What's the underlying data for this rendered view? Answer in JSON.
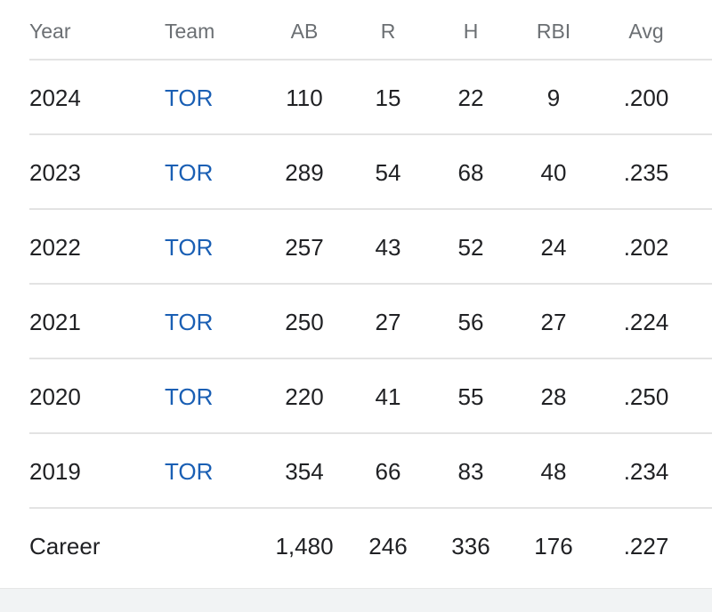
{
  "table": {
    "headers": {
      "year": "Year",
      "team": "Team",
      "ab": "AB",
      "r": "R",
      "h": "H",
      "rbi": "RBI",
      "avg": "Avg"
    },
    "rows": [
      {
        "year": "2024",
        "team": "TOR",
        "ab": "110",
        "r": "15",
        "h": "22",
        "rbi": "9",
        "avg": ".200"
      },
      {
        "year": "2023",
        "team": "TOR",
        "ab": "289",
        "r": "54",
        "h": "68",
        "rbi": "40",
        "avg": ".235"
      },
      {
        "year": "2022",
        "team": "TOR",
        "ab": "257",
        "r": "43",
        "h": "52",
        "rbi": "24",
        "avg": ".202"
      },
      {
        "year": "2021",
        "team": "TOR",
        "ab": "250",
        "r": "27",
        "h": "56",
        "rbi": "27",
        "avg": ".224"
      },
      {
        "year": "2020",
        "team": "TOR",
        "ab": "220",
        "r": "41",
        "h": "55",
        "rbi": "28",
        "avg": ".250"
      },
      {
        "year": "2019",
        "team": "TOR",
        "ab": "354",
        "r": "66",
        "h": "83",
        "rbi": "48",
        "avg": ".234"
      }
    ],
    "career": {
      "label": "Career",
      "ab": "1,480",
      "r": "246",
      "h": "336",
      "rbi": "176",
      "avg": ".227"
    }
  },
  "colors": {
    "link": "#1a5fb4",
    "header_text": "#6b6f73",
    "body_text": "#202124",
    "divider": "#e3e3e3"
  }
}
